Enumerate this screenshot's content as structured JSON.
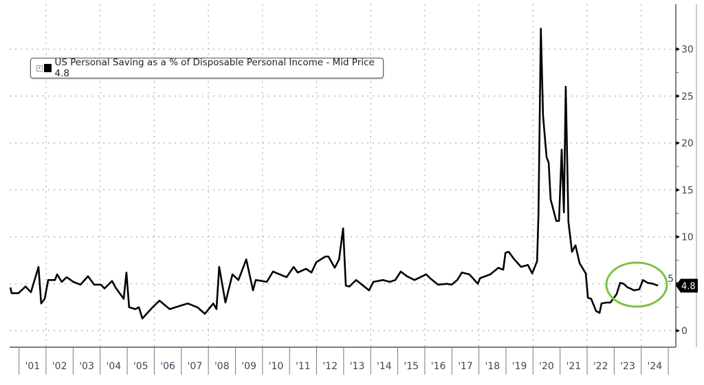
{
  "chart_data": {
    "type": "line",
    "title": "",
    "legend": {
      "label": "US Personal Saving as a % of Disposable Personal Income - Mid Price 4.8",
      "placement": "top-left"
    },
    "xlabel": "",
    "ylabel": "",
    "ylim": [
      0,
      33
    ],
    "xlim": [
      2000.6,
      2025
    ],
    "yticks": [
      0,
      5,
      10,
      15,
      20,
      25,
      30
    ],
    "xtick_labels": [
      "'01",
      "'02",
      "'03",
      "'04",
      "'05",
      "'06",
      "'07",
      "'08",
      "'09",
      "'10",
      "'11",
      "'12",
      "'13",
      "'14",
      "'15",
      "'16",
      "'17",
      "'18",
      "'19",
      "'20",
      "'21",
      "'22",
      "'23",
      "'24"
    ],
    "last_value_label": "4.8",
    "grid": true,
    "colors": {
      "line": "#000000",
      "annotation": "#7dc242",
      "axis_text": "#3b4656"
    },
    "annotation": "green ellipse around 2023-2024",
    "series": [
      {
        "name": "US Personal Saving as a % of Disposable Personal Income",
        "points": [
          [
            2000.68,
            4.6
          ],
          [
            2000.73,
            4.0
          ],
          [
            2000.98,
            4.0
          ],
          [
            2001.24,
            4.7
          ],
          [
            2001.44,
            4.1
          ],
          [
            2001.72,
            6.8
          ],
          [
            2001.82,
            2.9
          ],
          [
            2001.95,
            3.4
          ],
          [
            2002.08,
            5.4
          ],
          [
            2002.33,
            5.4
          ],
          [
            2002.41,
            6.0
          ],
          [
            2002.58,
            5.2
          ],
          [
            2002.76,
            5.7
          ],
          [
            2003.01,
            5.2
          ],
          [
            2003.27,
            4.9
          ],
          [
            2003.55,
            5.8
          ],
          [
            2003.78,
            4.9
          ],
          [
            2004.03,
            4.9
          ],
          [
            2004.16,
            4.5
          ],
          [
            2004.44,
            5.3
          ],
          [
            2004.57,
            4.6
          ],
          [
            2004.87,
            3.4
          ],
          [
            2004.97,
            6.2
          ],
          [
            2005.07,
            2.5
          ],
          [
            2005.3,
            2.3
          ],
          [
            2005.43,
            2.5
          ],
          [
            2005.56,
            1.3
          ],
          [
            2005.94,
            2.5
          ],
          [
            2006.19,
            3.2
          ],
          [
            2006.57,
            2.3
          ],
          [
            2006.9,
            2.6
          ],
          [
            2007.24,
            2.9
          ],
          [
            2007.59,
            2.5
          ],
          [
            2007.87,
            1.8
          ],
          [
            2008.18,
            2.9
          ],
          [
            2008.3,
            2.3
          ],
          [
            2008.4,
            6.8
          ],
          [
            2008.63,
            3.0
          ],
          [
            2008.89,
            6.0
          ],
          [
            2009.11,
            5.4
          ],
          [
            2009.4,
            7.6
          ],
          [
            2009.65,
            4.3
          ],
          [
            2009.75,
            5.4
          ],
          [
            2010.16,
            5.2
          ],
          [
            2010.39,
            6.3
          ],
          [
            2010.89,
            5.7
          ],
          [
            2011.15,
            6.8
          ],
          [
            2011.3,
            6.2
          ],
          [
            2011.61,
            6.6
          ],
          [
            2011.81,
            6.2
          ],
          [
            2011.99,
            7.3
          ],
          [
            2012.32,
            7.9
          ],
          [
            2012.44,
            7.9
          ],
          [
            2012.67,
            6.7
          ],
          [
            2012.83,
            7.6
          ],
          [
            2012.98,
            10.9
          ],
          [
            2013.08,
            4.8
          ],
          [
            2013.21,
            4.7
          ],
          [
            2013.46,
            5.4
          ],
          [
            2013.94,
            4.3
          ],
          [
            2014.1,
            5.2
          ],
          [
            2014.45,
            5.4
          ],
          [
            2014.71,
            5.2
          ],
          [
            2014.91,
            5.4
          ],
          [
            2015.11,
            6.3
          ],
          [
            2015.34,
            5.8
          ],
          [
            2015.62,
            5.4
          ],
          [
            2016.05,
            6.0
          ],
          [
            2016.23,
            5.5
          ],
          [
            2016.49,
            4.9
          ],
          [
            2016.82,
            5.0
          ],
          [
            2016.99,
            4.9
          ],
          [
            2017.2,
            5.4
          ],
          [
            2017.37,
            6.2
          ],
          [
            2017.65,
            6.0
          ],
          [
            2017.96,
            5.0
          ],
          [
            2018.04,
            5.6
          ],
          [
            2018.42,
            6.0
          ],
          [
            2018.72,
            6.7
          ],
          [
            2018.9,
            6.5
          ],
          [
            2018.98,
            8.3
          ],
          [
            2019.1,
            8.4
          ],
          [
            2019.31,
            7.6
          ],
          [
            2019.56,
            6.8
          ],
          [
            2019.81,
            7.0
          ],
          [
            2019.97,
            6.1
          ],
          [
            2020.15,
            7.4
          ],
          [
            2020.2,
            12.3
          ],
          [
            2020.29,
            32.2
          ],
          [
            2020.37,
            22.9
          ],
          [
            2020.5,
            18.5
          ],
          [
            2020.58,
            17.9
          ],
          [
            2020.65,
            14.0
          ],
          [
            2020.76,
            12.8
          ],
          [
            2020.86,
            11.7
          ],
          [
            2020.96,
            11.7
          ],
          [
            2021.06,
            19.3
          ],
          [
            2021.14,
            12.6
          ],
          [
            2021.21,
            26.0
          ],
          [
            2021.31,
            11.6
          ],
          [
            2021.44,
            8.4
          ],
          [
            2021.57,
            9.1
          ],
          [
            2021.72,
            7.2
          ],
          [
            2021.95,
            6.1
          ],
          [
            2022.03,
            3.5
          ],
          [
            2022.15,
            3.4
          ],
          [
            2022.33,
            2.1
          ],
          [
            2022.46,
            1.9
          ],
          [
            2022.53,
            2.9
          ],
          [
            2022.71,
            3.0
          ],
          [
            2022.86,
            3.0
          ],
          [
            2023.09,
            3.9
          ],
          [
            2023.22,
            5.1
          ],
          [
            2023.35,
            5.0
          ],
          [
            2023.5,
            4.6
          ],
          [
            2023.6,
            4.5
          ],
          [
            2023.73,
            4.3
          ],
          [
            2023.93,
            4.4
          ],
          [
            2024.06,
            5.4
          ],
          [
            2024.24,
            5.1
          ],
          [
            2024.44,
            5.0
          ],
          [
            2024.62,
            4.8
          ]
        ]
      }
    ]
  }
}
